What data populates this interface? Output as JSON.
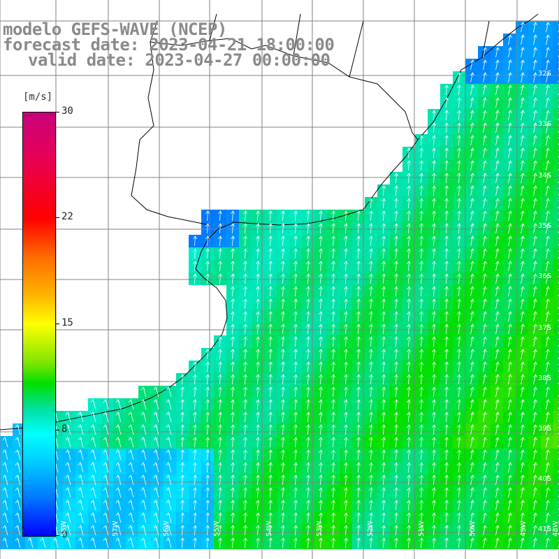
{
  "title": {
    "line1": "modelo GEFS-WAVE (NCEP)",
    "line2": "forecast date: 2023-04-21 18:00:00",
    "line3": "valid date: 2023-04-27 00:00:00"
  },
  "colorbar": {
    "unit": "[m/s]",
    "ticks": [
      "30",
      "22",
      "15",
      "8",
      "0"
    ],
    "range": [
      0,
      30
    ]
  },
  "lat_labels": [
    "32S",
    "33S",
    "34S",
    "35S",
    "36S",
    "37S",
    "38S",
    "39S",
    "40S",
    "41S"
  ],
  "lon_labels": [
    "58W",
    "57W",
    "56W",
    "55W",
    "54W",
    "53W",
    "52W",
    "51W",
    "50W",
    "49W",
    "48W"
  ],
  "colors": {
    "land": "#ffffff",
    "grid": "#808080",
    "coast": "#000000",
    "arrow": "#ffffff",
    "title": "#8a8a8a"
  }
}
